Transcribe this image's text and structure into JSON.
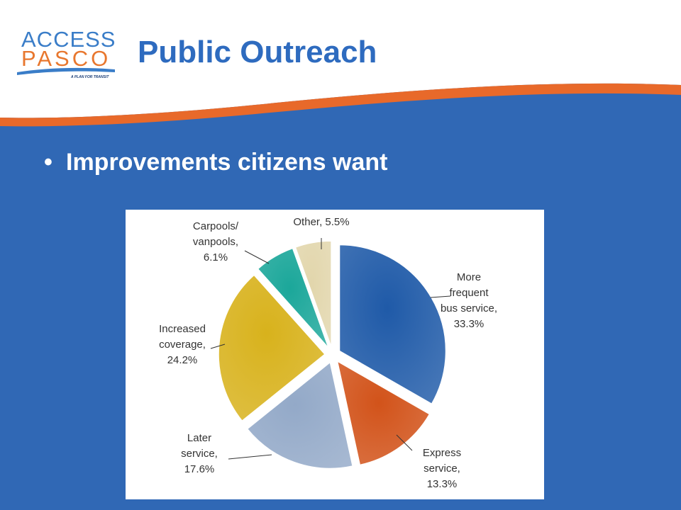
{
  "logo": {
    "line1": "ACCESS",
    "line2": "PASCO",
    "tagline": "A PLAN FOR TRANSIT"
  },
  "slide": {
    "title": "Public Outreach",
    "bullet": "Improvements citizens want"
  },
  "colors": {
    "background": "#3068b5",
    "title": "#2e6bbf",
    "accent_stripe": "#e8692a"
  },
  "chart_data": {
    "type": "pie",
    "title": "",
    "slices": [
      {
        "label": "More frequent bus service",
        "value": 33.3,
        "color": "#1f5aa8",
        "label_lines": [
          "More",
          "frequent",
          "bus service,",
          "33.3%"
        ]
      },
      {
        "label": "Express service",
        "value": 13.3,
        "color": "#d2531a",
        "label_lines": [
          "Express",
          "service,",
          "13.3%"
        ]
      },
      {
        "label": "Later service",
        "value": 17.6,
        "color": "#93a9c8",
        "label_lines": [
          "Later",
          "service,",
          "17.6%"
        ]
      },
      {
        "label": "Increased coverage",
        "value": 24.2,
        "color": "#d8b21c",
        "label_lines": [
          "Increased",
          "coverage,",
          "24.2%"
        ]
      },
      {
        "label": "Carpools/vanpools",
        "value": 6.1,
        "color": "#1ba79a",
        "label_lines": [
          "Carpools/",
          "vanpools,",
          "6.1%"
        ]
      },
      {
        "label": "Other",
        "value": 5.5,
        "color": "#e2d6ac",
        "label_lines": [
          "Other, 5.5%"
        ]
      }
    ],
    "start_angle_deg": 0,
    "direction": "clockwise",
    "exploded": true
  }
}
